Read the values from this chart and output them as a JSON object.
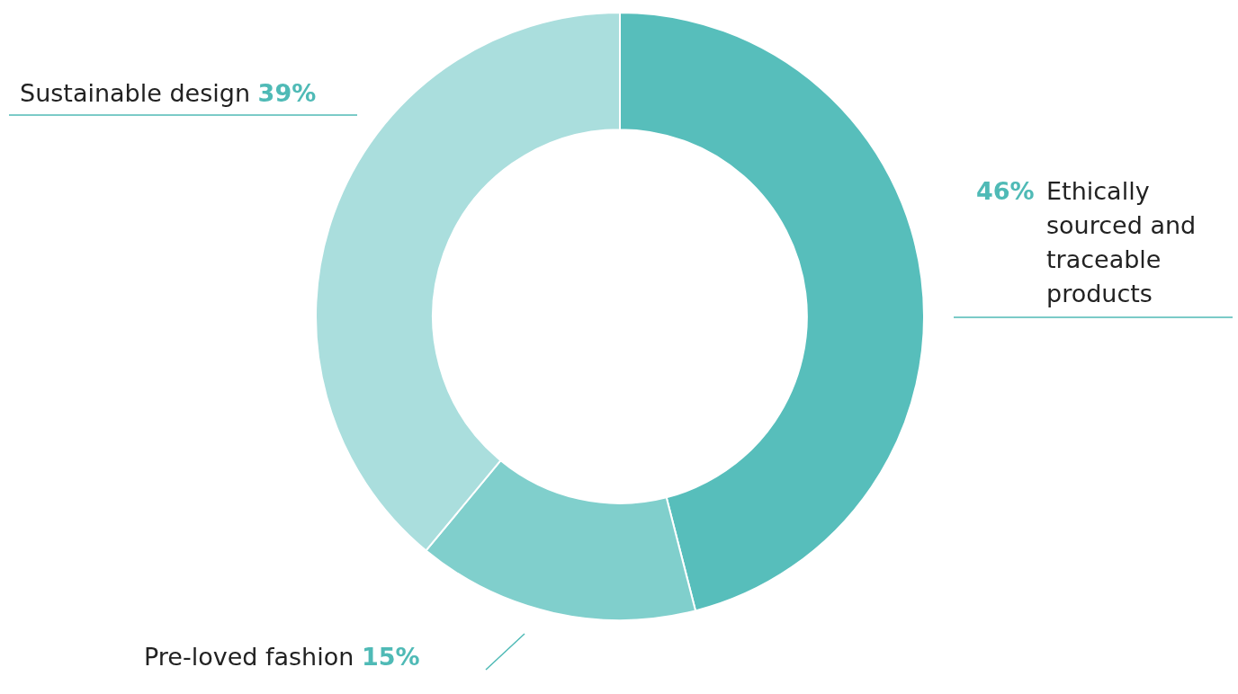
{
  "chart_data": {
    "type": "donut",
    "categories": [
      "Ethically sourced and traceable products",
      "Pre-loved fashion",
      "Sustainable design"
    ],
    "values": [
      46,
      15,
      39
    ],
    "value_labels": [
      "46%",
      "15%",
      "39%"
    ],
    "colors": [
      "#57bebb",
      "#80cfcc",
      "#aadedd"
    ]
  }
}
